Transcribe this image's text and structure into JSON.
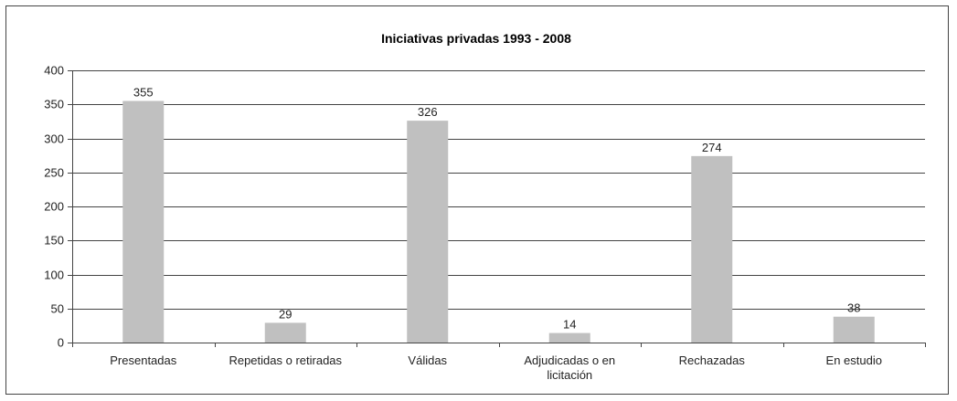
{
  "chart_data": {
    "type": "bar",
    "title": "Iniciativas privadas 1993 - 2008",
    "xlabel": "",
    "ylabel": "",
    "categories": [
      [
        "Presentadas"
      ],
      [
        "Repetidas o retiradas"
      ],
      [
        "Válidas"
      ],
      [
        "Adjudicadas o en",
        "licitación"
      ],
      [
        "Rechazadas"
      ],
      [
        "En estudio"
      ]
    ],
    "values": [
      355,
      29,
      326,
      14,
      274,
      38
    ],
    "value_labels": [
      "355",
      "29",
      "326",
      "14",
      "274",
      "38"
    ],
    "ylim": [
      0,
      400
    ],
    "yticks": [
      0,
      50,
      100,
      150,
      200,
      250,
      300,
      350,
      400
    ],
    "grid": true,
    "bar_color": "#c0c0c0"
  }
}
